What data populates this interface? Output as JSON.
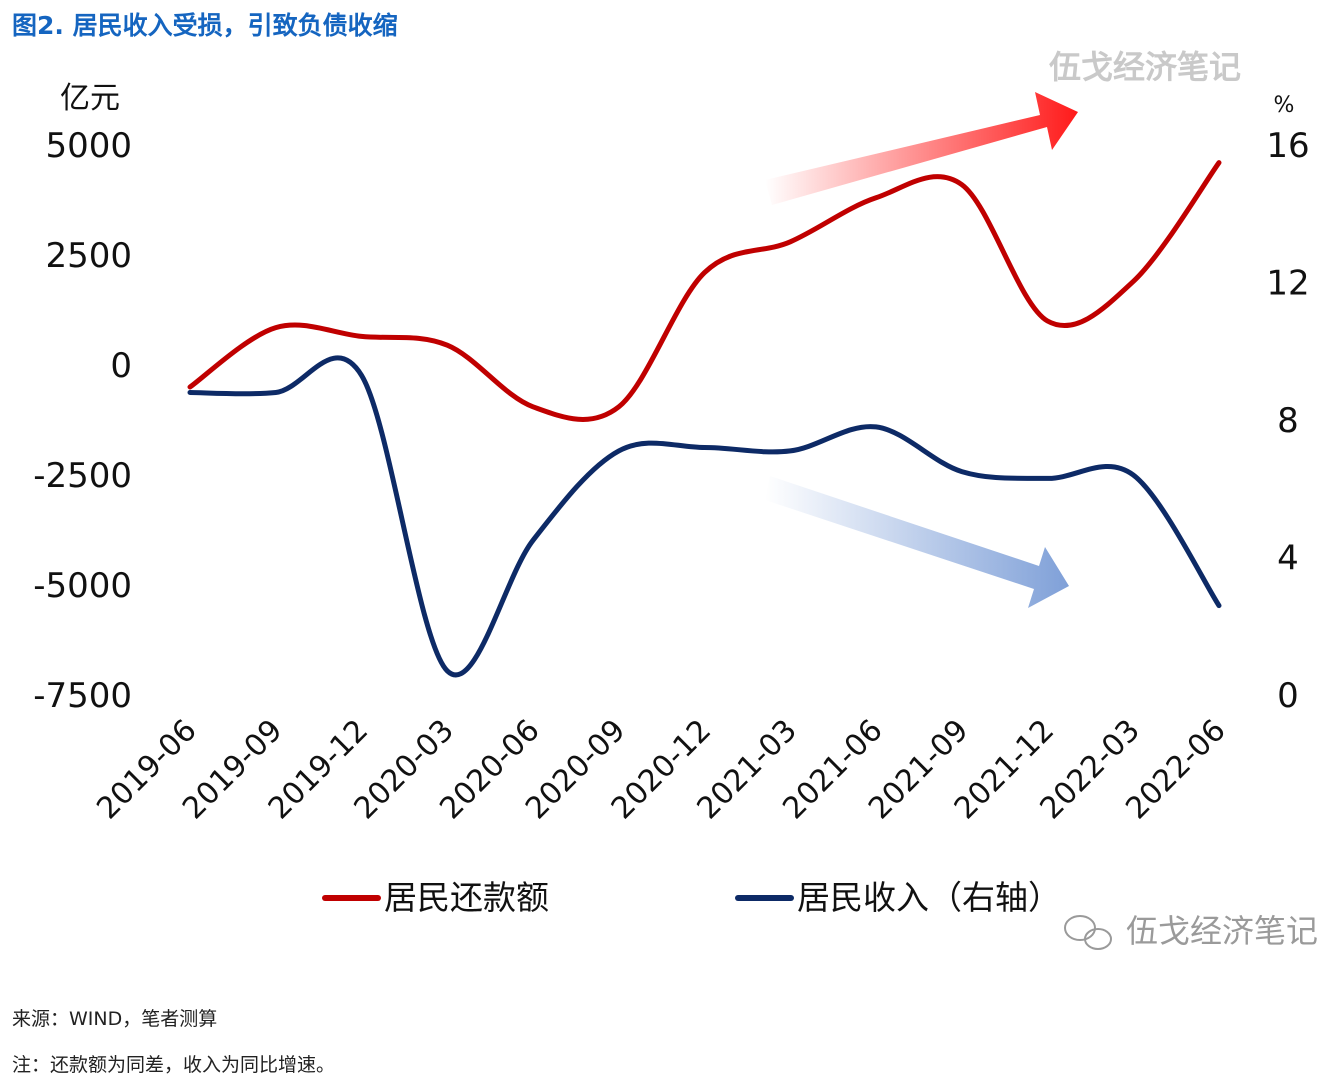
{
  "figure_title": "图2. 居民收入受损，引致负债收缩",
  "watermark": "伍戈经济笔记",
  "wechat_watermark": "伍戈经济笔记",
  "source_text": "来源：WIND，笔者测算",
  "note_text": "注：还款额为同差，收入为同比增速。",
  "colors": {
    "repayment": "#c00000",
    "income": "#0d2a66",
    "title": "#1565c0",
    "arrow_up": "#ff1a1a",
    "arrow_down": "#7fa0d8"
  },
  "chart_data": {
    "type": "line",
    "categories": [
      "2019-06",
      "2019-09",
      "2019-12",
      "2020-03",
      "2020-06",
      "2020-09",
      "2020-12",
      "2021-03",
      "2021-06",
      "2021-09",
      "2021-12",
      "2022-03",
      "2022-06"
    ],
    "y_left": {
      "unit_label": "亿元",
      "min": -7500,
      "max": 5000,
      "ticks": [
        "5000",
        "2500",
        "0",
        "-2500",
        "-5000",
        "-7500"
      ]
    },
    "y_right": {
      "unit_label": "%",
      "min": 0,
      "max": 16,
      "ticks": [
        "16",
        "12",
        "8",
        "4",
        "0"
      ]
    },
    "grid": false,
    "legend_position": "bottom",
    "series": [
      {
        "name": "居民还款额",
        "axis": "left",
        "values": [
          -500,
          850,
          650,
          450,
          -950,
          -950,
          2100,
          2800,
          3800,
          4100,
          1000,
          1900,
          4600
        ]
      },
      {
        "name": "居民收入（右轴）",
        "axis": "right",
        "values": [
          8.8,
          8.8,
          9.3,
          0.7,
          4.5,
          7.1,
          7.2,
          7.1,
          7.8,
          6.5,
          6.3,
          6.4,
          2.6
        ]
      }
    ]
  }
}
